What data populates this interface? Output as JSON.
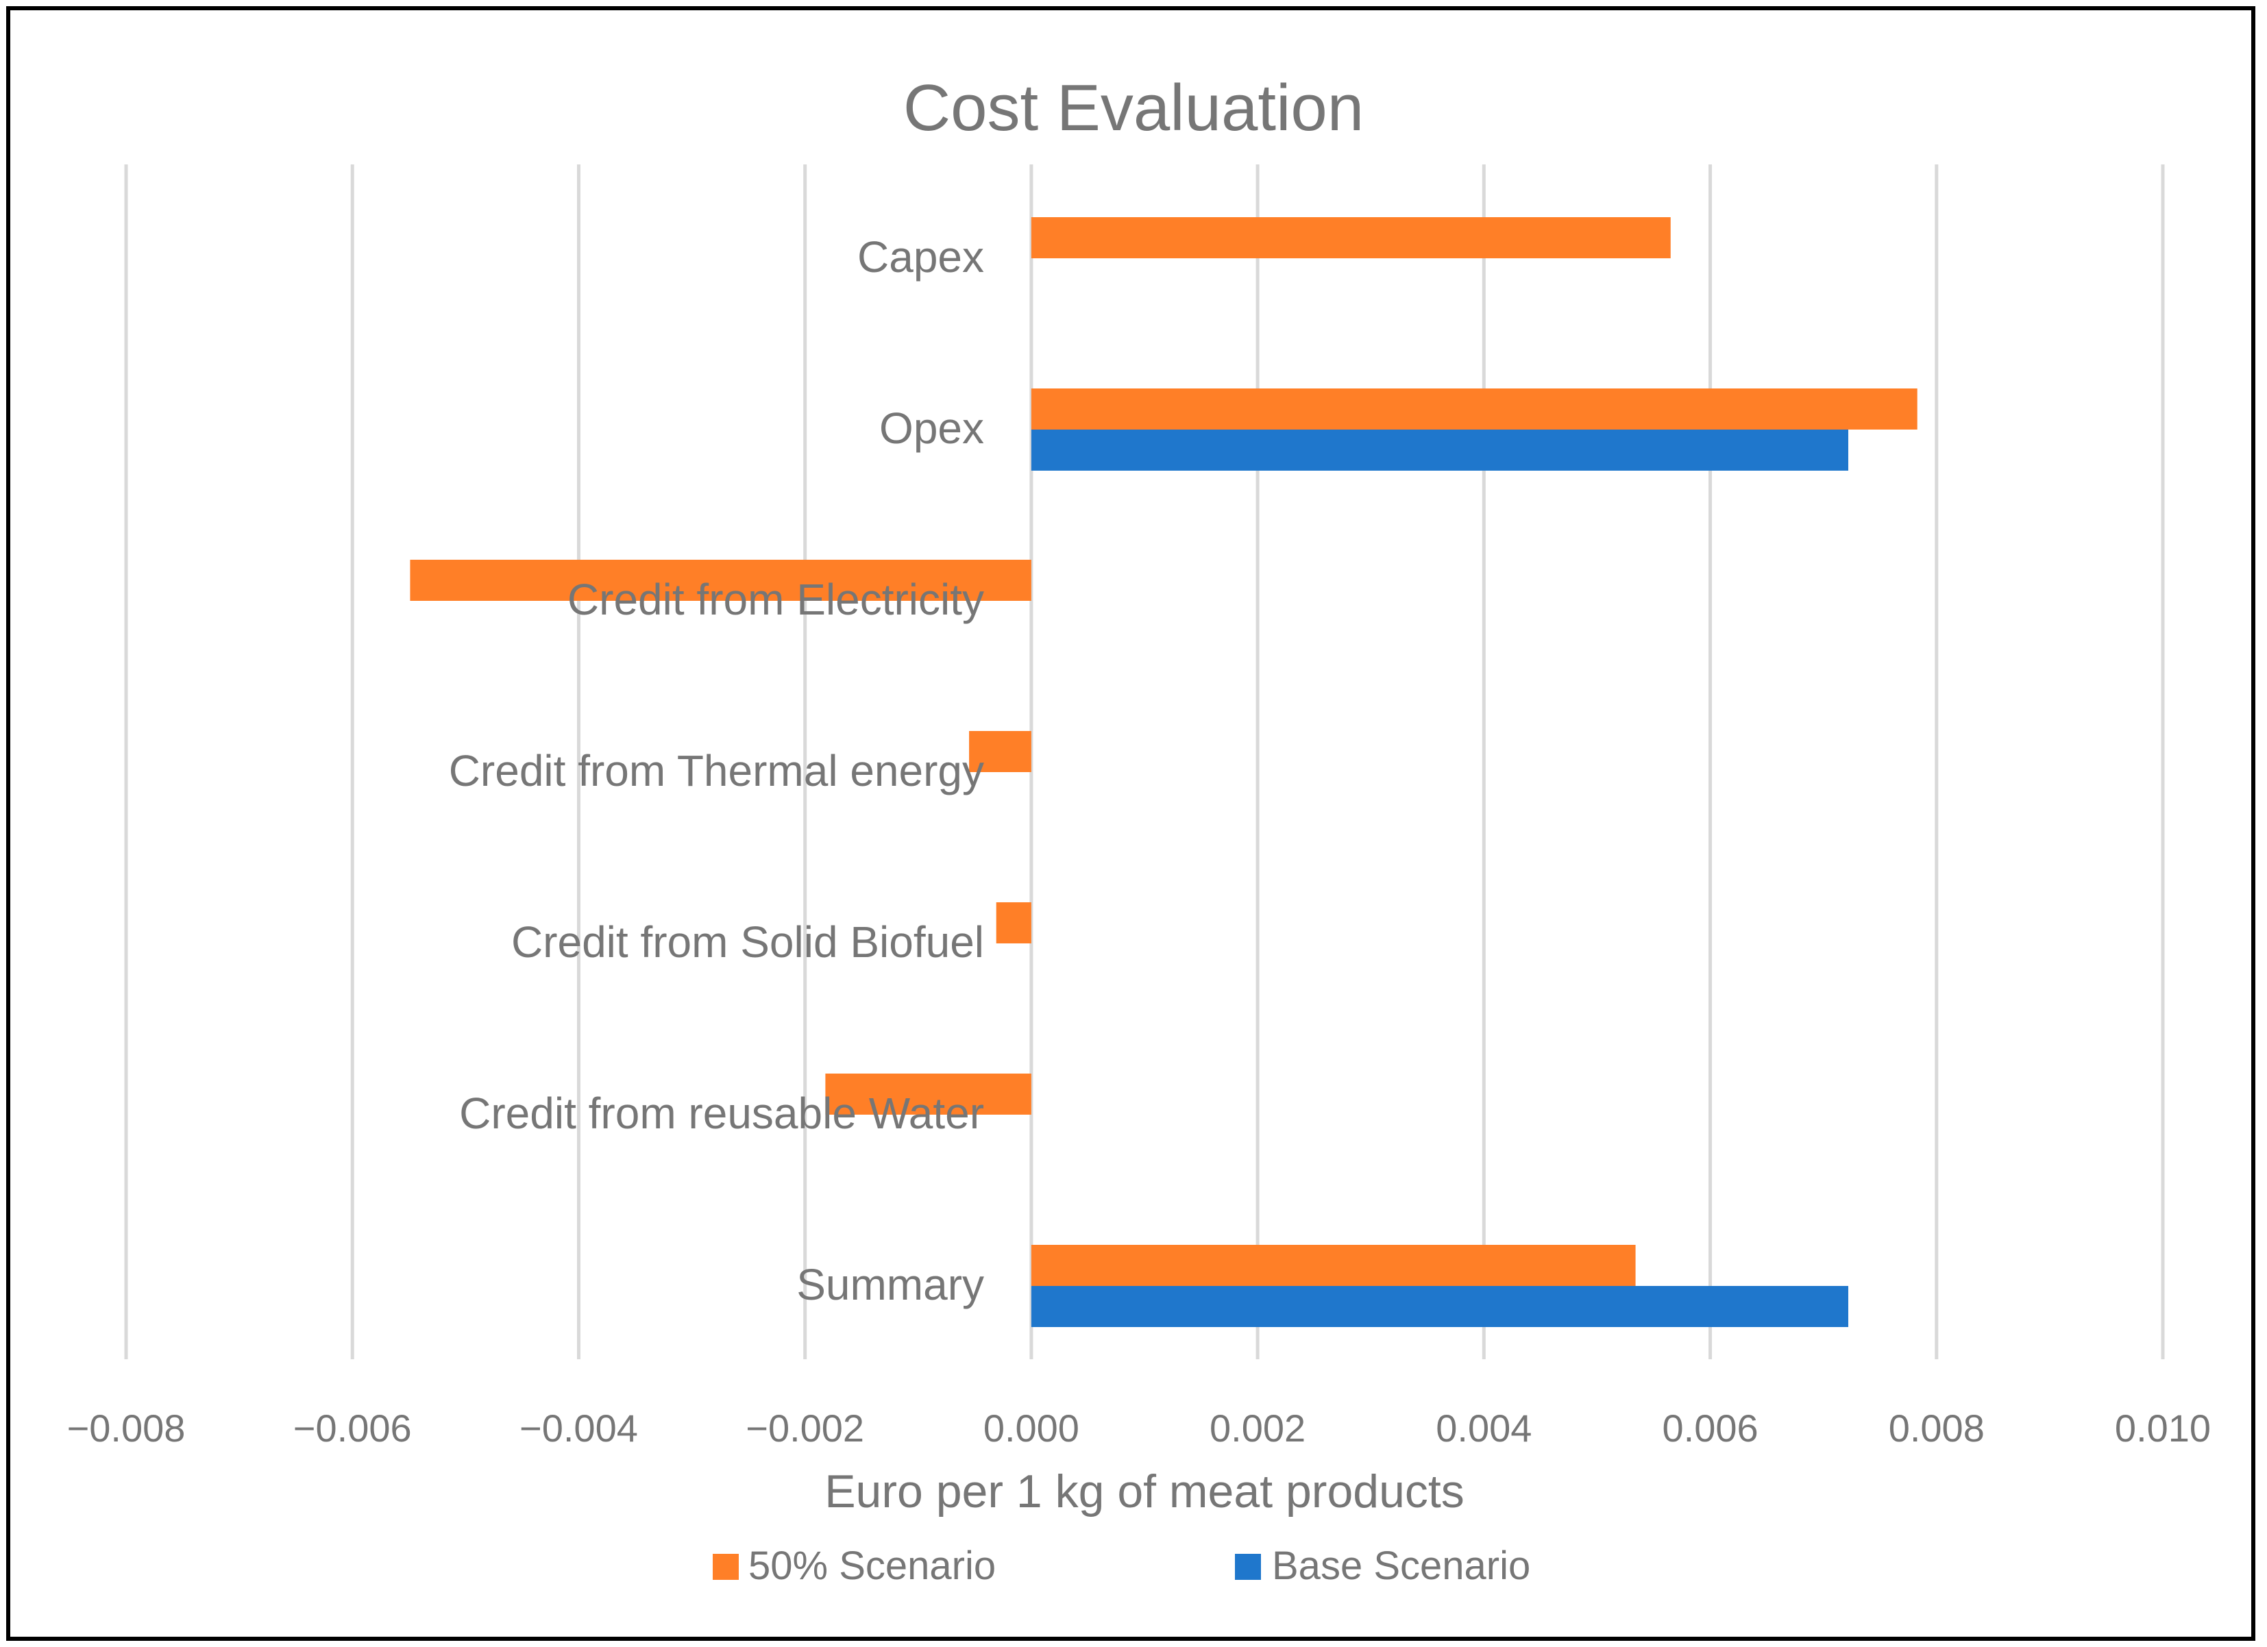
{
  "chart_data": {
    "type": "bar",
    "orientation": "horizontal",
    "title": "Cost Evaluation",
    "xlabel": "Euro per 1 kg of meat products",
    "ylabel": "",
    "xlim": [
      -0.008,
      0.01
    ],
    "xticks": [
      -0.008,
      -0.006,
      -0.004,
      -0.002,
      0.0,
      0.002,
      0.004,
      0.006,
      0.008,
      0.01
    ],
    "xtick_labels": [
      "−0.008",
      "−0.006",
      "−0.004",
      "−0.002",
      "0.000",
      "0.002",
      "0.004",
      "0.006",
      "0.008",
      "0.010"
    ],
    "grid": true,
    "legend_position": "bottom",
    "categories": [
      "Capex",
      "Opex",
      "Credit from Electricity",
      "Credit from Thermal energy",
      "Credit from Solid Biofuel",
      "Credit from reusable Water",
      "Summary"
    ],
    "series": [
      {
        "name": "50% Scenario",
        "color": "#ff7f27",
        "values": [
          0.00565,
          0.00783,
          -0.00549,
          -0.00055,
          -0.00031,
          -0.00182,
          0.00534
        ]
      },
      {
        "name": "Base Scenario",
        "color": "#1f77cc",
        "values": [
          null,
          0.00722,
          null,
          null,
          null,
          null,
          0.00722
        ]
      }
    ],
    "colors": {
      "grid": "#d9d9d9",
      "text": "#767676",
      "frame": "#000000"
    }
  }
}
